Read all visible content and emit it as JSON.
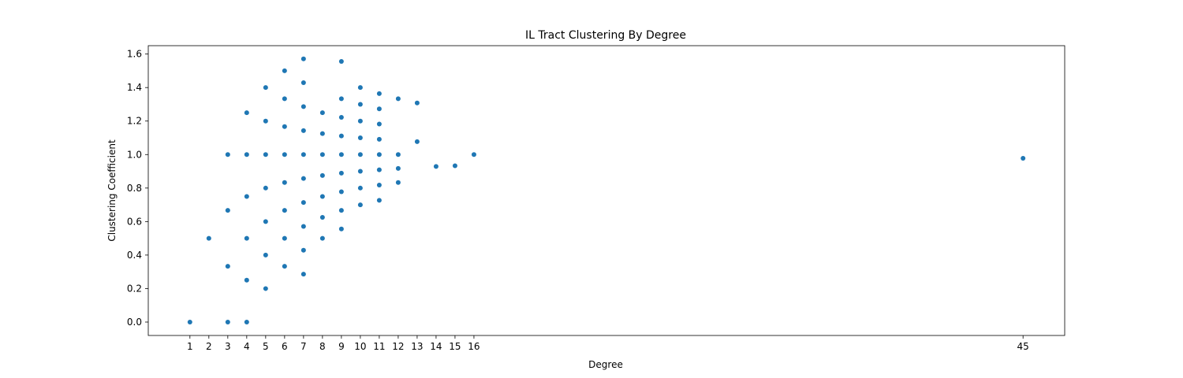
{
  "chart_data": {
    "type": "scatter",
    "title": "IL Tract Clustering By Degree",
    "xlabel": "Degree",
    "ylabel": "Clustering Coefficient",
    "xticks": [
      1,
      2,
      3,
      4,
      5,
      6,
      7,
      8,
      9,
      10,
      11,
      12,
      13,
      14,
      15,
      16,
      45
    ],
    "yticks": [
      "0.0",
      "0.2",
      "0.4",
      "0.6",
      "0.8",
      "1.0",
      "1.2",
      "1.4",
      "1.6"
    ],
    "xlim": [
      -1.2,
      47.2
    ],
    "ylim": [
      -0.08,
      1.65
    ],
    "grid": false,
    "marker_color": "#1f77b4",
    "points": [
      {
        "x": 1,
        "y": 0.0
      },
      {
        "x": 2,
        "y": 0.5
      },
      {
        "x": 3,
        "y": 1.0
      },
      {
        "x": 3,
        "y": 0.667
      },
      {
        "x": 3,
        "y": 0.333
      },
      {
        "x": 3,
        "y": 0.0
      },
      {
        "x": 4,
        "y": 1.25
      },
      {
        "x": 4,
        "y": 1.0
      },
      {
        "x": 4,
        "y": 0.75
      },
      {
        "x": 4,
        "y": 0.5
      },
      {
        "x": 4,
        "y": 0.25
      },
      {
        "x": 4,
        "y": 0.0
      },
      {
        "x": 5,
        "y": 1.4
      },
      {
        "x": 5,
        "y": 1.2
      },
      {
        "x": 5,
        "y": 1.0
      },
      {
        "x": 5,
        "y": 0.8
      },
      {
        "x": 5,
        "y": 0.6
      },
      {
        "x": 5,
        "y": 0.4
      },
      {
        "x": 5,
        "y": 0.2
      },
      {
        "x": 6,
        "y": 1.5
      },
      {
        "x": 6,
        "y": 1.333
      },
      {
        "x": 6,
        "y": 1.167
      },
      {
        "x": 6,
        "y": 1.0
      },
      {
        "x": 6,
        "y": 0.833
      },
      {
        "x": 6,
        "y": 0.667
      },
      {
        "x": 6,
        "y": 0.5
      },
      {
        "x": 6,
        "y": 0.333
      },
      {
        "x": 7,
        "y": 1.571
      },
      {
        "x": 7,
        "y": 1.429
      },
      {
        "x": 7,
        "y": 1.286
      },
      {
        "x": 7,
        "y": 1.143
      },
      {
        "x": 7,
        "y": 1.0
      },
      {
        "x": 7,
        "y": 0.857
      },
      {
        "x": 7,
        "y": 0.714
      },
      {
        "x": 7,
        "y": 0.571
      },
      {
        "x": 7,
        "y": 0.429
      },
      {
        "x": 7,
        "y": 0.286
      },
      {
        "x": 8,
        "y": 1.25
      },
      {
        "x": 8,
        "y": 1.125
      },
      {
        "x": 8,
        "y": 1.0
      },
      {
        "x": 8,
        "y": 0.875
      },
      {
        "x": 8,
        "y": 0.75
      },
      {
        "x": 8,
        "y": 0.625
      },
      {
        "x": 8,
        "y": 0.5
      },
      {
        "x": 9,
        "y": 1.556
      },
      {
        "x": 9,
        "y": 1.333
      },
      {
        "x": 9,
        "y": 1.222
      },
      {
        "x": 9,
        "y": 1.111
      },
      {
        "x": 9,
        "y": 1.0
      },
      {
        "x": 9,
        "y": 0.889
      },
      {
        "x": 9,
        "y": 0.778
      },
      {
        "x": 9,
        "y": 0.667
      },
      {
        "x": 9,
        "y": 0.556
      },
      {
        "x": 10,
        "y": 1.4
      },
      {
        "x": 10,
        "y": 1.3
      },
      {
        "x": 10,
        "y": 1.2
      },
      {
        "x": 10,
        "y": 1.1
      },
      {
        "x": 10,
        "y": 1.0
      },
      {
        "x": 10,
        "y": 0.9
      },
      {
        "x": 10,
        "y": 0.8
      },
      {
        "x": 10,
        "y": 0.7
      },
      {
        "x": 11,
        "y": 1.364
      },
      {
        "x": 11,
        "y": 1.273
      },
      {
        "x": 11,
        "y": 1.182
      },
      {
        "x": 11,
        "y": 1.091
      },
      {
        "x": 11,
        "y": 1.0
      },
      {
        "x": 11,
        "y": 0.909
      },
      {
        "x": 11,
        "y": 0.818
      },
      {
        "x": 11,
        "y": 0.727
      },
      {
        "x": 12,
        "y": 1.333
      },
      {
        "x": 12,
        "y": 1.0
      },
      {
        "x": 12,
        "y": 0.917
      },
      {
        "x": 12,
        "y": 0.833
      },
      {
        "x": 13,
        "y": 1.308
      },
      {
        "x": 13,
        "y": 1.077
      },
      {
        "x": 14,
        "y": 0.929
      },
      {
        "x": 15,
        "y": 0.933
      },
      {
        "x": 16,
        "y": 1.0
      },
      {
        "x": 45,
        "y": 0.978
      }
    ]
  }
}
